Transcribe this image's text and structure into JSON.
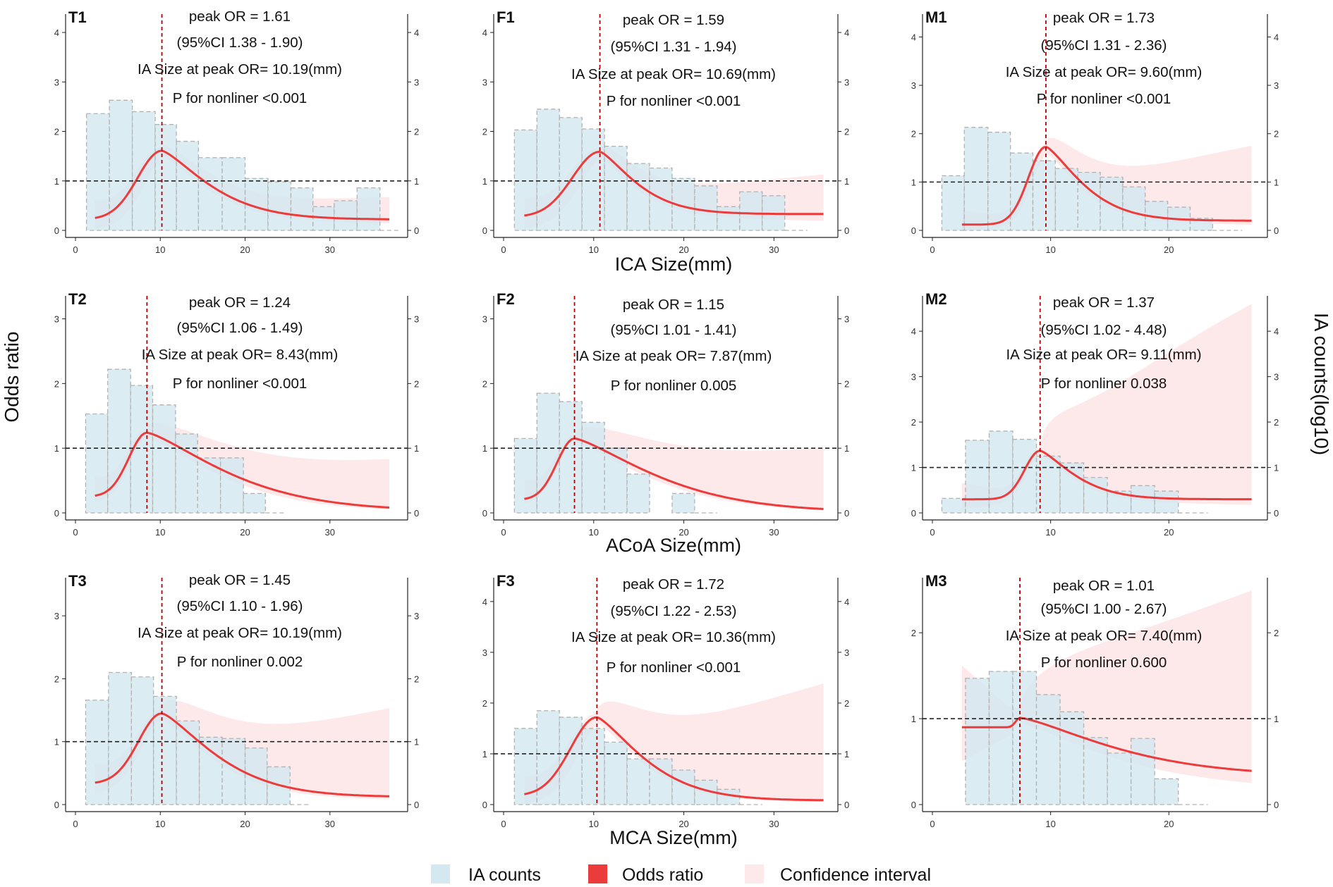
{
  "figure": {
    "ylabel_left": "Odds ratio",
    "ylabel_right": "IA counts(log10)",
    "row_xlabels": [
      "ICA Size(mm)",
      "ACoA Size(mm)",
      "MCA Size(mm)"
    ],
    "legend": [
      {
        "key": "hist",
        "label": "IA counts",
        "color": "#d3e8f0"
      },
      {
        "key": "or",
        "label": "Odds ratio",
        "color": "#ec3b3b"
      },
      {
        "key": "ci",
        "label": "Confidence interval",
        "color": "#fde9e9"
      }
    ],
    "colors": {
      "hist_fill": "#d3e8f0",
      "hist_stroke": "#b2b2b2",
      "or_line": "#ec3b3b",
      "ci_fill": "#fde9e9",
      "peak_line": "#b30000",
      "ref_line": "#222222"
    }
  },
  "chart_data": [
    {
      "id": "T1",
      "type": "line",
      "peak_or": 1.61,
      "xpeak": 10.19,
      "xmax": 38,
      "ymax": 4.3,
      "x0": 2.3,
      "x1": 37,
      "y0": 0.22,
      "y1": 0.22,
      "ltail": 1.2,
      "rtail": 0.85,
      "ci": [
        0.3,
        0.8,
        0.3,
        0.35
      ],
      "annotations": [
        "peak OR = 1.61",
        "(95%CI 1.38 - 1.90)",
        "IA Size at peak OR= 10.19(mm)",
        "P for nonliner <0.001"
      ],
      "yticks": [
        0,
        1,
        2,
        3,
        4
      ],
      "xticks": [
        0,
        10,
        20,
        30
      ],
      "hist": [
        [
          1.3,
          4.0,
          2.36
        ],
        [
          4.0,
          6.7,
          2.63
        ],
        [
          6.7,
          9.4,
          2.4
        ],
        [
          9.4,
          11.9,
          2.14
        ],
        [
          11.9,
          14.5,
          1.8
        ],
        [
          14.5,
          17.3,
          1.47
        ],
        [
          17.3,
          20.0,
          1.47
        ],
        [
          20.0,
          22.7,
          1.05
        ],
        [
          22.7,
          25.4,
          0.98
        ],
        [
          25.4,
          28.0,
          0.86
        ],
        [
          28.0,
          30.5,
          0.48
        ],
        [
          30.5,
          33.2,
          0.6
        ],
        [
          33.2,
          35.9,
          0.86
        ]
      ]
    },
    {
      "id": "F1",
      "type": "line",
      "peak_or": 1.59,
      "xpeak": 10.69,
      "xmax": 36,
      "ymax": 4.3,
      "x0": 2.3,
      "x1": 35.5,
      "y0": 0.27,
      "y1": 0.33,
      "ltail": 1.2,
      "rtail": 1.1,
      "ci": [
        0.3,
        0.8,
        0.35,
        0.7
      ],
      "annotations": [
        "peak OR = 1.59",
        "(95%CI 1.31 - 1.94)",
        "IA Size at peak OR= 10.69(mm)",
        "P for nonliner <0.001"
      ],
      "yticks": [
        0,
        1,
        2,
        3,
        4
      ],
      "xticks": [
        0,
        10,
        20,
        30
      ],
      "hist": [
        [
          1.2,
          3.7,
          2.03
        ],
        [
          3.7,
          6.2,
          2.45
        ],
        [
          6.2,
          8.7,
          2.28
        ],
        [
          8.7,
          11.2,
          2.05
        ],
        [
          11.2,
          13.7,
          1.7
        ],
        [
          13.7,
          16.2,
          1.35
        ],
        [
          16.2,
          18.7,
          1.26
        ],
        [
          18.7,
          21.2,
          1.05
        ],
        [
          21.2,
          23.7,
          0.9
        ],
        [
          23.7,
          26.2,
          0.48
        ],
        [
          26.2,
          28.7,
          0.78
        ],
        [
          28.7,
          31.2,
          0.7
        ]
      ]
    },
    {
      "id": "M1",
      "type": "line",
      "peak_or": 1.73,
      "xpeak": 9.6,
      "xmax": 27.5,
      "ymax": 4.4,
      "x0": 2.5,
      "x1": 27,
      "y0": 0.12,
      "y1": 0.2,
      "ltail": 2.1,
      "rtail": 1.0,
      "ci": [
        0.25,
        0.9,
        0.35,
        1.45
      ],
      "annotations": [
        "peak OR = 1.73",
        "(95%CI 1.31 - 2.36)",
        "IA Size at peak OR= 9.60(mm)",
        "P for nonliner <0.001"
      ],
      "yticks": [
        0,
        1,
        2,
        3,
        4
      ],
      "xticks": [
        0,
        10,
        20
      ],
      "hist": [
        [
          0.8,
          2.7,
          1.13
        ],
        [
          2.7,
          4.7,
          2.13
        ],
        [
          4.7,
          6.6,
          2.03
        ],
        [
          6.6,
          8.5,
          1.6
        ],
        [
          8.5,
          10.4,
          1.44
        ],
        [
          10.4,
          12.3,
          1.28
        ],
        [
          12.3,
          14.2,
          1.2
        ],
        [
          14.2,
          16.1,
          1.1
        ],
        [
          16.1,
          18.0,
          0.9
        ],
        [
          18.0,
          19.9,
          0.6
        ],
        [
          19.9,
          21.8,
          0.48
        ],
        [
          21.8,
          23.7,
          0.25
        ]
      ]
    },
    {
      "id": "T2",
      "type": "line",
      "peak_or": 1.24,
      "xpeak": 8.43,
      "xmax": 38,
      "ymax": 3.3,
      "x0": 2.3,
      "x1": 37,
      "y0": 0.25,
      "y1": 0.03,
      "ltail": 1.25,
      "rtail": 0.55,
      "ci": [
        0.25,
        0.35,
        0.3,
        0.65
      ],
      "annotations": [
        "peak OR = 1.24",
        "(95%CI 1.06 - 1.49)",
        "IA Size at peak OR= 8.43(mm)",
        "P for nonliner <0.001"
      ],
      "yticks": [
        0,
        1,
        2,
        3
      ],
      "xticks": [
        0,
        10,
        20,
        30
      ],
      "hist": [
        [
          1.2,
          3.8,
          1.53
        ],
        [
          3.8,
          6.5,
          2.22
        ],
        [
          6.5,
          9.1,
          1.97
        ],
        [
          9.1,
          11.8,
          1.67
        ],
        [
          11.8,
          14.4,
          1.22
        ],
        [
          14.4,
          17.1,
          0.85
        ],
        [
          17.1,
          19.8,
          0.85
        ],
        [
          19.8,
          22.4,
          0.3
        ]
      ]
    },
    {
      "id": "F2",
      "type": "line",
      "peak_or": 1.15,
      "xpeak": 7.87,
      "xmax": 36,
      "ymax": 3.3,
      "x0": 2.3,
      "x1": 35.5,
      "y0": 0.2,
      "y1": 0.01,
      "ltail": 1.25,
      "rtail": 0.55,
      "ci": [
        0.25,
        0.25,
        0.25,
        0.85
      ],
      "annotations": [
        "peak OR = 1.15",
        "(95%CI 1.01 - 1.41)",
        "IA Size at peak OR= 7.87(mm)",
        "P for nonliner 0.005"
      ],
      "yticks": [
        0,
        1,
        2,
        3
      ],
      "xticks": [
        0,
        10,
        20,
        30
      ],
      "hist": [
        [
          1.2,
          3.7,
          1.15
        ],
        [
          3.7,
          6.2,
          1.85
        ],
        [
          6.2,
          8.7,
          1.72
        ],
        [
          8.7,
          11.2,
          1.4
        ],
        [
          11.2,
          13.7,
          1.0
        ],
        [
          13.7,
          16.2,
          0.6
        ],
        [
          18.7,
          21.2,
          0.3
        ]
      ]
    },
    {
      "id": "M2",
      "type": "line",
      "peak_or": 1.37,
      "xpeak": 9.11,
      "xmax": 27.5,
      "ymax": 4.7,
      "x0": 2.5,
      "x1": 27,
      "y0": 0.3,
      "y1": 0.3,
      "ltail": 2.2,
      "rtail": 1.1,
      "ci": [
        0.3,
        0.65,
        0.35,
        4.2
      ],
      "annotations": [
        "peak OR = 1.37",
        "(95%CI 1.02 - 4.48)",
        "IA Size at peak OR= 9.11(mm)",
        "P for nonliner 0.038"
      ],
      "yticks": [
        0,
        1,
        2,
        3,
        4
      ],
      "xticks": [
        0,
        10,
        20
      ],
      "hist": [
        [
          0.8,
          2.8,
          0.32
        ],
        [
          2.8,
          4.8,
          1.6
        ],
        [
          4.8,
          6.8,
          1.8
        ],
        [
          6.8,
          8.8,
          1.62
        ],
        [
          8.8,
          10.8,
          1.25
        ],
        [
          10.8,
          12.8,
          1.1
        ],
        [
          12.8,
          14.8,
          0.78
        ],
        [
          14.8,
          16.8,
          0.48
        ],
        [
          16.8,
          18.8,
          0.6
        ],
        [
          18.8,
          20.8,
          0.48
        ]
      ]
    },
    {
      "id": "T3",
      "type": "line",
      "peak_or": 1.45,
      "xpeak": 10.19,
      "xmax": 38,
      "ymax": 3.55,
      "x0": 2.3,
      "x1": 37,
      "y0": 0.33,
      "y1": 0.12,
      "ltail": 1.25,
      "rtail": 0.75,
      "ci": [
        0.25,
        0.45,
        0.3,
        1.3
      ],
      "annotations": [
        "peak OR = 1.45",
        "(95%CI 1.10 - 1.96)",
        "IA Size at peak OR= 10.19(mm)",
        "P for nonliner 0.002"
      ],
      "yticks": [
        0,
        1,
        2,
        3
      ],
      "xticks": [
        0,
        10,
        20,
        30
      ],
      "hist": [
        [
          1.2,
          3.9,
          1.66
        ],
        [
          3.9,
          6.6,
          2.1
        ],
        [
          6.6,
          9.2,
          2.03
        ],
        [
          9.2,
          11.9,
          1.72
        ],
        [
          11.9,
          14.6,
          1.33
        ],
        [
          14.6,
          17.3,
          1.07
        ],
        [
          17.3,
          20.0,
          1.05
        ],
        [
          20.0,
          22.6,
          0.9
        ],
        [
          22.6,
          25.3,
          0.6
        ]
      ]
    },
    {
      "id": "F3",
      "type": "line",
      "peak_or": 1.72,
      "xpeak": 10.36,
      "xmax": 36,
      "ymax": 4.4,
      "x0": 2.3,
      "x1": 35.5,
      "y0": 0.17,
      "y1": 0.08,
      "ltail": 1.2,
      "rtail": 0.85,
      "ci": [
        0.3,
        0.8,
        0.3,
        2.2
      ],
      "annotations": [
        "peak OR = 1.72",
        "(95%CI 1.22 - 2.53)",
        "IA Size at peak OR= 10.36(mm)",
        "P for nonliner <0.001"
      ],
      "yticks": [
        0,
        1,
        2,
        3,
        4
      ],
      "xticks": [
        0,
        10,
        20,
        30
      ],
      "hist": [
        [
          1.2,
          3.7,
          1.5
        ],
        [
          3.7,
          6.2,
          1.85
        ],
        [
          6.2,
          8.7,
          1.72
        ],
        [
          8.7,
          11.2,
          1.5
        ],
        [
          11.2,
          13.7,
          1.23
        ],
        [
          13.7,
          16.2,
          0.9
        ],
        [
          16.2,
          18.7,
          0.9
        ],
        [
          18.7,
          21.2,
          0.68
        ],
        [
          21.2,
          23.7,
          0.48
        ],
        [
          23.7,
          26.2,
          0.3
        ]
      ]
    },
    {
      "id": "M3",
      "type": "line",
      "peak_or": 1.01,
      "xpeak": 7.4,
      "xmax": 27.5,
      "ymax": 2.6,
      "x0": 2.5,
      "x1": 27,
      "y0": 0.9,
      "y1": 0.33,
      "ltail": 6.0,
      "rtail": 0.45,
      "ci": [
        0.6,
        0.4,
        0.3,
        2.0
      ],
      "annotations": [
        "peak OR = 1.01",
        "(95%CI 1.00 - 2.67)",
        "IA Size at peak OR= 7.40(mm)",
        "P for nonliner 0.600"
      ],
      "yticks": [
        0,
        1,
        2
      ],
      "xticks": [
        0,
        10,
        20
      ],
      "hist": [
        [
          2.8,
          4.8,
          1.47
        ],
        [
          4.8,
          6.8,
          1.55
        ],
        [
          6.8,
          8.8,
          1.55
        ],
        [
          8.8,
          10.8,
          1.28
        ],
        [
          10.8,
          12.8,
          1.08
        ],
        [
          12.8,
          14.8,
          0.78
        ],
        [
          14.8,
          16.8,
          0.6
        ],
        [
          16.8,
          18.8,
          0.77
        ],
        [
          18.8,
          20.8,
          0.3
        ]
      ]
    }
  ]
}
